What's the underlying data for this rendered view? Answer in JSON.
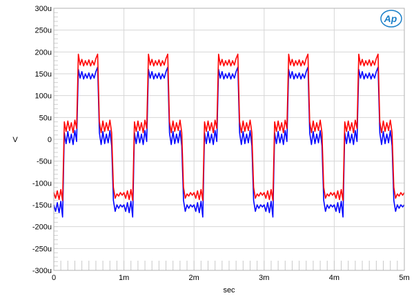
{
  "chart_data": {
    "type": "line",
    "title": "",
    "xlabel": "sec",
    "ylabel": "V",
    "xlim": [
      0,
      0.005
    ],
    "ylim": [
      -0.0003,
      0.0003
    ],
    "grid": true,
    "x_ticks": [
      {
        "v": 0,
        "label": "0"
      },
      {
        "v": 0.001,
        "label": "1m"
      },
      {
        "v": 0.002,
        "label": "2m"
      },
      {
        "v": 0.003,
        "label": "3m"
      },
      {
        "v": 0.004,
        "label": "4m"
      },
      {
        "v": 0.005,
        "label": "5m"
      }
    ],
    "y_ticks": [
      {
        "v": 0.0003,
        "label": "300u"
      },
      {
        "v": 0.00025,
        "label": "250u"
      },
      {
        "v": 0.0002,
        "label": "200u"
      },
      {
        "v": 0.00015,
        "label": "150u"
      },
      {
        "v": 0.0001,
        "label": "100u"
      },
      {
        "v": 5e-05,
        "label": "50u"
      },
      {
        "v": 0,
        "label": "0"
      },
      {
        "v": -5e-05,
        "label": "-50u"
      },
      {
        "v": -0.0001,
        "label": "-100u"
      },
      {
        "v": -0.00015,
        "label": "-150u"
      },
      {
        "v": -0.0002,
        "label": "-200u"
      },
      {
        "v": -0.00025,
        "label": "-250u"
      },
      {
        "v": -0.0003,
        "label": "-300u"
      }
    ],
    "x_start": 0,
    "sample_interval": 2.5e-05,
    "y_unit_scale": 1e-06,
    "series": [
      {
        "color": "#ff0000",
        "values": [
          -122,
          -135,
          -118,
          -138,
          -115,
          -140,
          40,
          18,
          42,
          20,
          38,
          15,
          44,
          25,
          195,
          170,
          183,
          168,
          180,
          170,
          182,
          168,
          180,
          170,
          185,
          195,
          40,
          15,
          42,
          18,
          38,
          20,
          44,
          15,
          -110,
          -135,
          -125,
          -130,
          -122,
          -128,
          -122,
          -135,
          -118,
          -138,
          -115,
          -140,
          40,
          18,
          42,
          20,
          38,
          15,
          44,
          25,
          195,
          170,
          183,
          168,
          180,
          170,
          182,
          168,
          180,
          170,
          185,
          195,
          40,
          15,
          42,
          18,
          38,
          20,
          44,
          15,
          -110,
          -135,
          -125,
          -130,
          -122,
          -128,
          -122,
          -135,
          -118,
          -138,
          -115,
          -140,
          40,
          18,
          42,
          20,
          38,
          15,
          44,
          25,
          195,
          170,
          183,
          168,
          180,
          170,
          182,
          168,
          180,
          170,
          185,
          195,
          40,
          15,
          42,
          18,
          38,
          20,
          44,
          15,
          -110,
          -135,
          -125,
          -130,
          -122,
          -128,
          -122,
          -135,
          -118,
          -138,
          -115,
          -140,
          40,
          18,
          42,
          20,
          38,
          15,
          44,
          25,
          195,
          170,
          183,
          168,
          180,
          170,
          182,
          168,
          180,
          170,
          185,
          195,
          40,
          15,
          42,
          18,
          38,
          20,
          44,
          15,
          -110,
          -135,
          -125,
          -130,
          -122,
          -128,
          -122,
          -135,
          -118,
          -138,
          -115,
          -140,
          40,
          18,
          42,
          20,
          38,
          15,
          44,
          25,
          195,
          170,
          183,
          168,
          180,
          170,
          182,
          168,
          180,
          170,
          185,
          195,
          40,
          15,
          42,
          18,
          38,
          20,
          44,
          15,
          -110,
          -135,
          -125,
          -130,
          -122,
          -128,
          -122
        ]
      },
      {
        "color": "#0000ff",
        "values": [
          -150,
          -165,
          -145,
          -168,
          -142,
          -178,
          15,
          -10,
          18,
          -8,
          12,
          -12,
          20,
          -5,
          160,
          140,
          155,
          138,
          150,
          140,
          152,
          138,
          150,
          140,
          155,
          165,
          15,
          -12,
          18,
          -10,
          12,
          -8,
          20,
          -15,
          -140,
          -165,
          -150,
          -158,
          -150,
          -155,
          -150,
          -165,
          -145,
          -168,
          -142,
          -178,
          15,
          -10,
          18,
          -8,
          12,
          -12,
          20,
          -5,
          160,
          140,
          155,
          138,
          150,
          140,
          152,
          138,
          150,
          140,
          155,
          165,
          15,
          -12,
          18,
          -10,
          12,
          -8,
          20,
          -15,
          -140,
          -165,
          -150,
          -158,
          -150,
          -155,
          -150,
          -165,
          -145,
          -168,
          -142,
          -178,
          15,
          -10,
          18,
          -8,
          12,
          -12,
          20,
          -5,
          160,
          140,
          155,
          138,
          150,
          140,
          152,
          138,
          150,
          140,
          155,
          165,
          15,
          -12,
          18,
          -10,
          12,
          -8,
          20,
          -15,
          -140,
          -165,
          -150,
          -158,
          -150,
          -155,
          -150,
          -165,
          -145,
          -168,
          -142,
          -178,
          15,
          -10,
          18,
          -8,
          12,
          -12,
          20,
          -5,
          160,
          140,
          155,
          138,
          150,
          140,
          152,
          138,
          150,
          140,
          155,
          165,
          15,
          -12,
          18,
          -10,
          12,
          -8,
          20,
          -15,
          -140,
          -165,
          -150,
          -158,
          -150,
          -155,
          -150,
          -165,
          -145,
          -168,
          -142,
          -178,
          15,
          -10,
          18,
          -8,
          12,
          -12,
          20,
          -5,
          160,
          140,
          155,
          138,
          150,
          140,
          152,
          138,
          150,
          140,
          155,
          165,
          15,
          -12,
          18,
          -10,
          12,
          -8,
          20,
          -15,
          -140,
          -165,
          -150,
          -158,
          -150,
          -155,
          -150
        ]
      }
    ]
  },
  "logo": {
    "text": "Ap",
    "color": "#1a7fc8"
  }
}
